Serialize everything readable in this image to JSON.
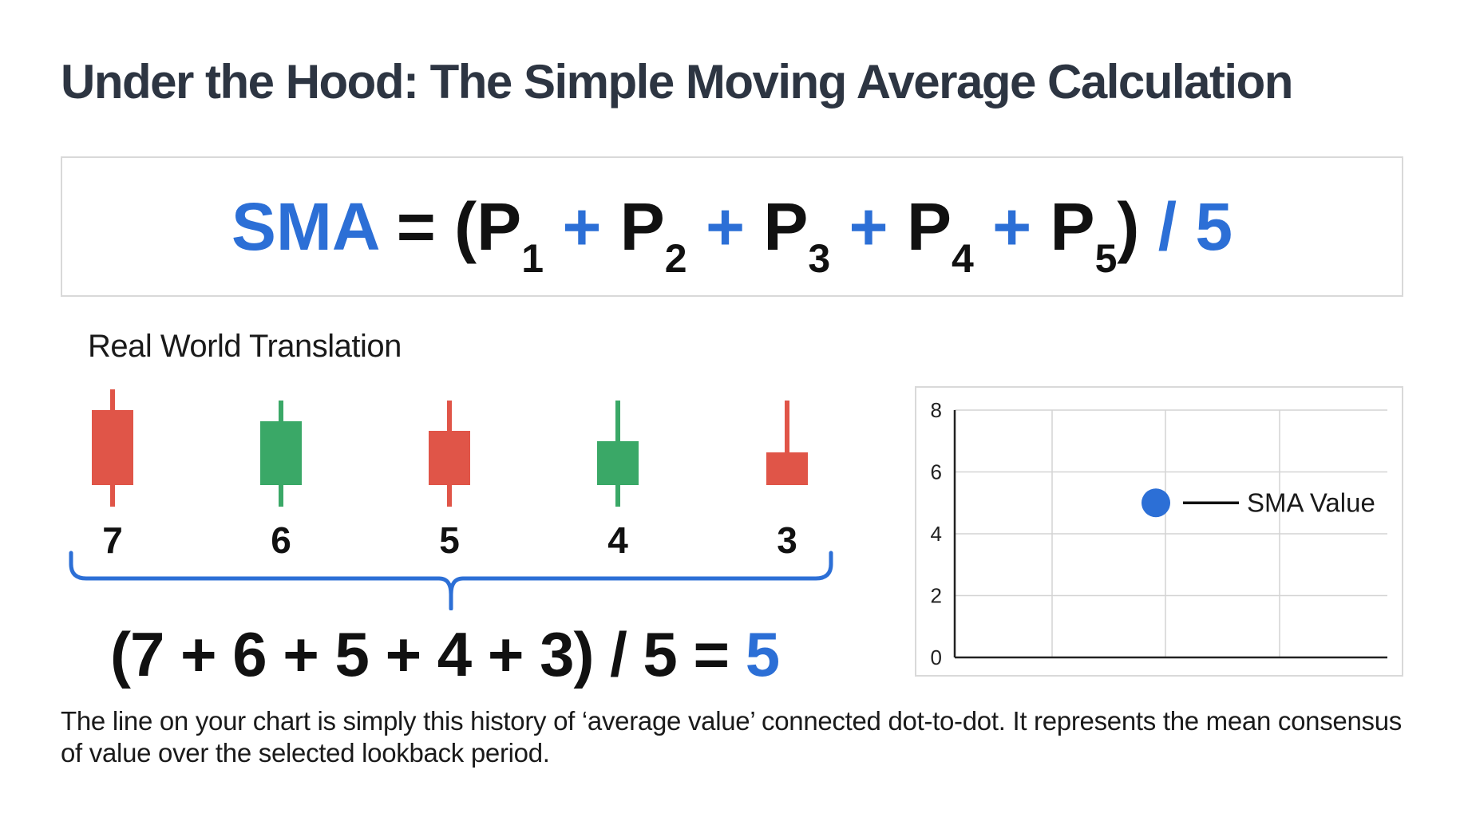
{
  "title": "Under the Hood: The Simple Moving Average Calculation",
  "formula": {
    "lhs": "SMA",
    "eq": "=",
    "open": "(",
    "p": "P",
    "subs": [
      "1",
      "2",
      "3",
      "4",
      "5"
    ],
    "plus": "+",
    "close": ")",
    "div": "/ 5"
  },
  "section_label": "Real World Translation",
  "candles": [
    {
      "value": "7",
      "color": "#e05548"
    },
    {
      "value": "6",
      "color": "#3aa867"
    },
    {
      "value": "5",
      "color": "#e05548"
    },
    {
      "value": "4",
      "color": "#3aa867"
    },
    {
      "value": "3",
      "color": "#e05548"
    }
  ],
  "calculation": {
    "expression": "(7 + 6 + 5 + 4 + 3) / 5 =",
    "result": "5"
  },
  "chart_data": {
    "type": "scatter",
    "ylim": [
      0,
      8
    ],
    "yticks": [
      "0",
      "2",
      "4",
      "6",
      "8"
    ],
    "grid": true,
    "series": [
      {
        "name": "SMA Value",
        "points": [
          {
            "y": 5
          }
        ]
      }
    ],
    "legend": "SMA Value"
  },
  "footer": "The line on your chart is simply this history of ‘average value’ connected dot-to-dot. It represents the mean consensus of value over the selected lookback period.",
  "colors": {
    "accent": "#2c6fd6",
    "bearish": "#e05548",
    "bullish": "#3aa867",
    "title": "#2d3542"
  }
}
